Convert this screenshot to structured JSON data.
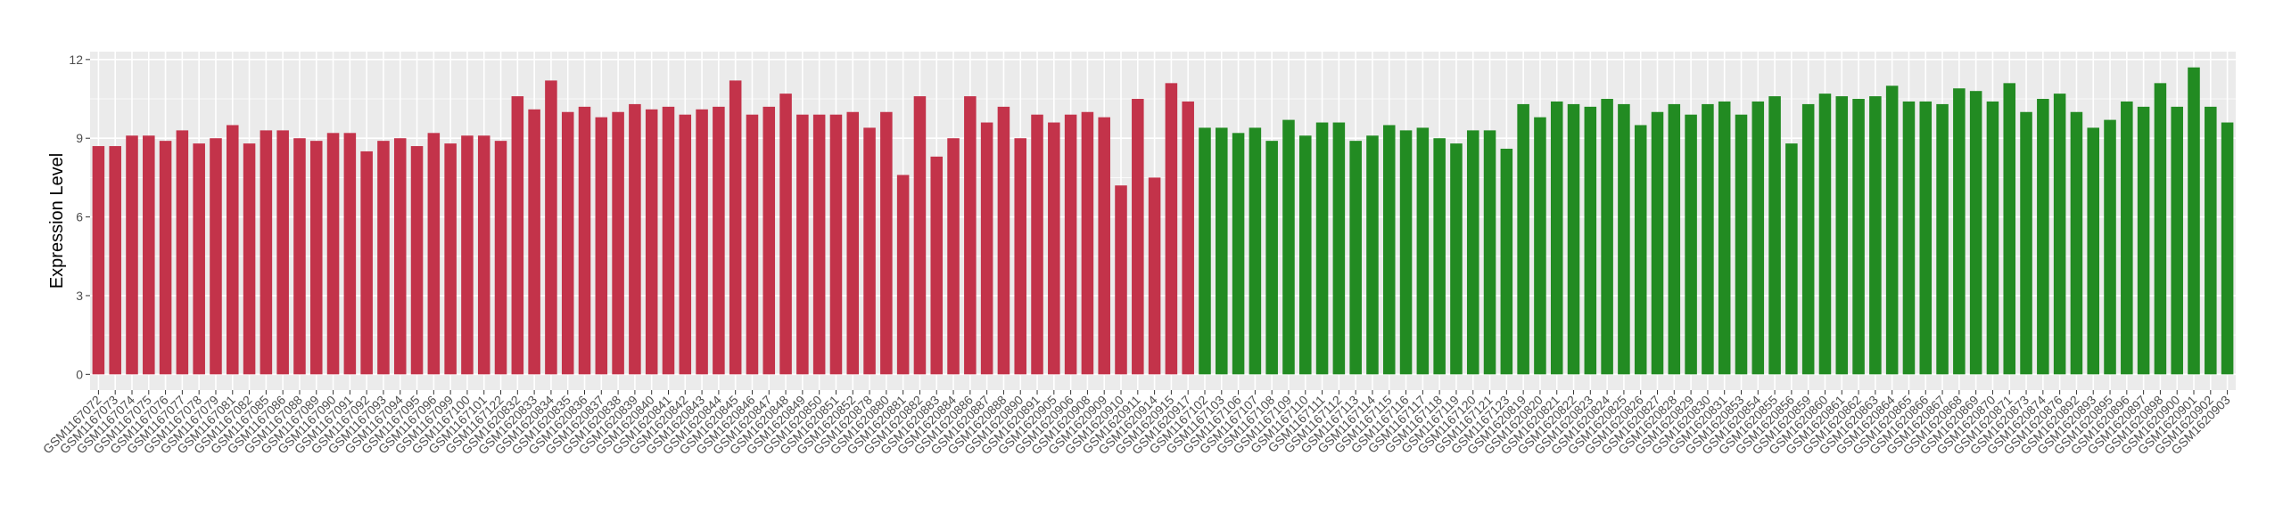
{
  "chart_data": {
    "type": "bar",
    "y_label": "Expression Level",
    "categories": [
      "GSM1167072",
      "GSM1167073",
      "GSM1167074",
      "GSM1167075",
      "GSM1167076",
      "GSM1167077",
      "GSM1167078",
      "GSM1167079",
      "GSM1167081",
      "GSM1167082",
      "GSM1167085",
      "GSM1167086",
      "GSM1167088",
      "GSM1167089",
      "GSM1167090",
      "GSM1167091",
      "GSM1167092",
      "GSM1167093",
      "GSM1167094",
      "GSM1167095",
      "GSM1167096",
      "GSM1167099",
      "GSM1167100",
      "GSM1167101",
      "GSM1167122",
      "GSM1620832",
      "GSM1620833",
      "GSM1620834",
      "GSM1620835",
      "GSM1620836",
      "GSM1620837",
      "GSM1620838",
      "GSM1620839",
      "GSM1620840",
      "GSM1620841",
      "GSM1620842",
      "GSM1620843",
      "GSM1620844",
      "GSM1620845",
      "GSM1620846",
      "GSM1620847",
      "GSM1620848",
      "GSM1620849",
      "GSM1620850",
      "GSM1620851",
      "GSM1620852",
      "GSM1620878",
      "GSM1620880",
      "GSM1620881",
      "GSM1620882",
      "GSM1620883",
      "GSM1620884",
      "GSM1620886",
      "GSM1620887",
      "GSM1620888",
      "GSM1620890",
      "GSM1620891",
      "GSM1620905",
      "GSM1620906",
      "GSM1620908",
      "GSM1620909",
      "GSM1620910",
      "GSM1620911",
      "GSM1620914",
      "GSM1620915",
      "GSM1620917",
      "GSM1167102",
      "GSM1167103",
      "GSM1167106",
      "GSM1167107",
      "GSM1167108",
      "GSM1167109",
      "GSM1167110",
      "GSM1167111",
      "GSM1167112",
      "GSM1167113",
      "GSM1167114",
      "GSM1167115",
      "GSM1167116",
      "GSM1167117",
      "GSM1167118",
      "GSM1167119",
      "GSM1167120",
      "GSM1167121",
      "GSM1167123",
      "GSM1620819",
      "GSM1620820",
      "GSM1620821",
      "GSM1620822",
      "GSM1620823",
      "GSM1620824",
      "GSM1620825",
      "GSM1620826",
      "GSM1620827",
      "GSM1620828",
      "GSM1620829",
      "GSM1620830",
      "GSM1620831",
      "GSM1620853",
      "GSM1620854",
      "GSM1620855",
      "GSM1620856",
      "GSM1620859",
      "GSM1620860",
      "GSM1620861",
      "GSM1620862",
      "GSM1620863",
      "GSM1620864",
      "GSM1620865",
      "GSM1620866",
      "GSM1620867",
      "GSM1620868",
      "GSM1620869",
      "GSM1620870",
      "GSM1620871",
      "GSM1620873",
      "GSM1620874",
      "GSM1620876",
      "GSM1620892",
      "GSM1620893",
      "GSM1620895",
      "GSM1620896",
      "GSM1620897",
      "GSM1620898",
      "GSM1620900",
      "GSM1620901",
      "GSM1620902",
      "GSM1620903"
    ],
    "values": [
      8.7,
      8.7,
      9.1,
      9.1,
      8.9,
      9.3,
      8.8,
      9.0,
      9.5,
      8.8,
      9.3,
      9.3,
      9.0,
      8.9,
      9.2,
      9.2,
      8.5,
      8.9,
      9.0,
      8.7,
      9.2,
      8.8,
      9.1,
      9.1,
      8.9,
      10.6,
      10.1,
      11.2,
      10.0,
      10.2,
      9.8,
      10.0,
      10.3,
      10.1,
      10.2,
      9.9,
      10.1,
      10.2,
      11.2,
      9.9,
      10.2,
      10.7,
      9.9,
      9.9,
      9.9,
      10.0,
      9.4,
      10.0,
      7.6,
      10.6,
      8.3,
      9.0,
      10.6,
      9.6,
      10.2,
      9.0,
      9.9,
      9.6,
      9.9,
      10.0,
      9.8,
      7.2,
      10.5,
      7.5,
      11.1,
      10.4,
      9.4,
      9.4,
      9.2,
      9.4,
      8.9,
      9.7,
      9.1,
      9.6,
      9.6,
      8.9,
      9.1,
      9.5,
      9.3,
      9.4,
      9.0,
      8.8,
      9.3,
      9.3,
      8.6,
      10.3,
      9.8,
      10.4,
      10.3,
      10.2,
      10.5,
      10.3,
      9.5,
      10.0,
      10.3,
      9.9,
      10.3,
      10.4,
      9.9,
      10.4,
      10.6,
      8.8,
      10.3,
      10.7,
      10.6,
      10.5,
      10.6,
      11.0,
      10.4,
      10.4,
      10.3,
      10.9,
      10.8,
      10.4,
      11.1,
      10.0,
      10.5,
      10.7,
      10.0,
      9.4,
      9.7,
      10.4,
      10.2,
      11.1,
      10.2,
      11.7,
      10.2,
      9.6
    ],
    "colors": [
      "#c3334a",
      "#c3334a",
      "#c3334a",
      "#c3334a",
      "#c3334a",
      "#c3334a",
      "#c3334a",
      "#c3334a",
      "#c3334a",
      "#c3334a",
      "#c3334a",
      "#c3334a",
      "#c3334a",
      "#c3334a",
      "#c3334a",
      "#c3334a",
      "#c3334a",
      "#c3334a",
      "#c3334a",
      "#c3334a",
      "#c3334a",
      "#c3334a",
      "#c3334a",
      "#c3334a",
      "#c3334a",
      "#c3334a",
      "#c3334a",
      "#c3334a",
      "#c3334a",
      "#c3334a",
      "#c3334a",
      "#c3334a",
      "#c3334a",
      "#c3334a",
      "#c3334a",
      "#c3334a",
      "#c3334a",
      "#c3334a",
      "#c3334a",
      "#c3334a",
      "#c3334a",
      "#c3334a",
      "#c3334a",
      "#c3334a",
      "#c3334a",
      "#c3334a",
      "#c3334a",
      "#c3334a",
      "#c3334a",
      "#c3334a",
      "#c3334a",
      "#c3334a",
      "#c3334a",
      "#c3334a",
      "#c3334a",
      "#c3334a",
      "#c3334a",
      "#c3334a",
      "#c3334a",
      "#c3334a",
      "#c3334a",
      "#c3334a",
      "#c3334a",
      "#c3334a",
      "#c3334a",
      "#c3334a",
      "#228b22",
      "#228b22",
      "#228b22",
      "#228b22",
      "#228b22",
      "#228b22",
      "#228b22",
      "#228b22",
      "#228b22",
      "#228b22",
      "#228b22",
      "#228b22",
      "#228b22",
      "#228b22",
      "#228b22",
      "#228b22",
      "#228b22",
      "#228b22",
      "#228b22",
      "#228b22",
      "#228b22",
      "#228b22",
      "#228b22",
      "#228b22",
      "#228b22",
      "#228b22",
      "#228b22",
      "#228b22",
      "#228b22",
      "#228b22",
      "#228b22",
      "#228b22",
      "#228b22",
      "#228b22",
      "#228b22",
      "#228b22",
      "#228b22",
      "#228b22",
      "#228b22",
      "#228b22",
      "#228b22",
      "#228b22",
      "#228b22",
      "#228b22",
      "#228b22",
      "#228b22",
      "#228b22",
      "#228b22",
      "#228b22",
      "#228b22",
      "#228b22",
      "#228b22",
      "#228b22",
      "#228b22",
      "#228b22",
      "#228b22",
      "#228b22",
      "#228b22",
      "#228b22",
      "#228b22",
      "#228b22",
      "#228b22"
    ],
    "ylim": [
      -0.6,
      12.3
    ],
    "yticks": [
      0,
      3,
      6,
      9,
      12
    ],
    "grid": true
  }
}
